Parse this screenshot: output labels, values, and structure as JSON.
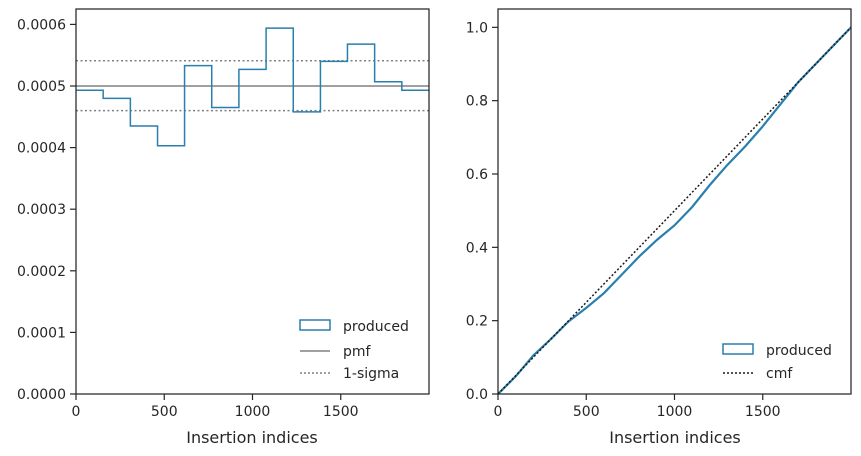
{
  "colors": {
    "produced": "#2a7fad",
    "pmf": "#808080",
    "sigma": "#808080",
    "cmf": "#1a1a1a"
  },
  "chart_data": [
    {
      "type": "histogram-step",
      "xlabel": "Insertion indices",
      "ylabel": "",
      "xlim": [
        0,
        2000
      ],
      "ylim": [
        0,
        0.000625
      ],
      "xticks": [
        0,
        500,
        1000,
        1500
      ],
      "xtick_labels": [
        "0",
        "500",
        "1000",
        "1500"
      ],
      "yticks": [
        0,
        0.0001,
        0.0002,
        0.0003,
        0.0004,
        0.0005,
        0.0006
      ],
      "ytick_labels": [
        "0.0000",
        "0.0001",
        "0.0002",
        "0.0003",
        "0.0004",
        "0.0005",
        "0.0006"
      ],
      "bin_edges": [
        0,
        154,
        308,
        462,
        615,
        769,
        923,
        1077,
        1231,
        1385,
        1538,
        1692,
        1846,
        2000
      ],
      "produced": [
        0.000493,
        0.00048,
        0.000435,
        0.000403,
        0.000533,
        0.000465,
        0.000527,
        0.000594,
        0.000458,
        0.00054,
        0.000568,
        0.000507,
        0.000493
      ],
      "pmf": 0.0005,
      "sigma": [
        0.00046,
        0.000541
      ],
      "legend": [
        "produced",
        "pmf",
        "1-sigma"
      ],
      "legend_position": "lower-right"
    },
    {
      "type": "line",
      "xlabel": "Insertion indices",
      "ylabel": "",
      "xlim": [
        0,
        2000
      ],
      "ylim": [
        0,
        1.05
      ],
      "xticks": [
        0,
        500,
        1000,
        1500
      ],
      "xtick_labels": [
        "0",
        "500",
        "1000",
        "1500"
      ],
      "yticks": [
        0,
        0.2,
        0.4,
        0.6,
        0.8,
        1.0
      ],
      "ytick_labels": [
        "0.0",
        "0.2",
        "0.4",
        "0.6",
        "0.8",
        "1.0"
      ],
      "produced_x": [
        0,
        100,
        200,
        300,
        400,
        500,
        600,
        700,
        800,
        900,
        1000,
        1100,
        1200,
        1300,
        1400,
        1500,
        1600,
        1700,
        1800,
        1900,
        2000
      ],
      "produced_y": [
        0,
        0.048,
        0.105,
        0.15,
        0.198,
        0.235,
        0.275,
        0.325,
        0.375,
        0.42,
        0.46,
        0.51,
        0.57,
        0.625,
        0.675,
        0.73,
        0.79,
        0.85,
        0.9,
        0.95,
        1.0
      ],
      "cmf_x": [
        0,
        2000
      ],
      "cmf_y": [
        0,
        1.0
      ],
      "legend": [
        "produced",
        "cmf"
      ],
      "legend_position": "lower-right"
    }
  ]
}
